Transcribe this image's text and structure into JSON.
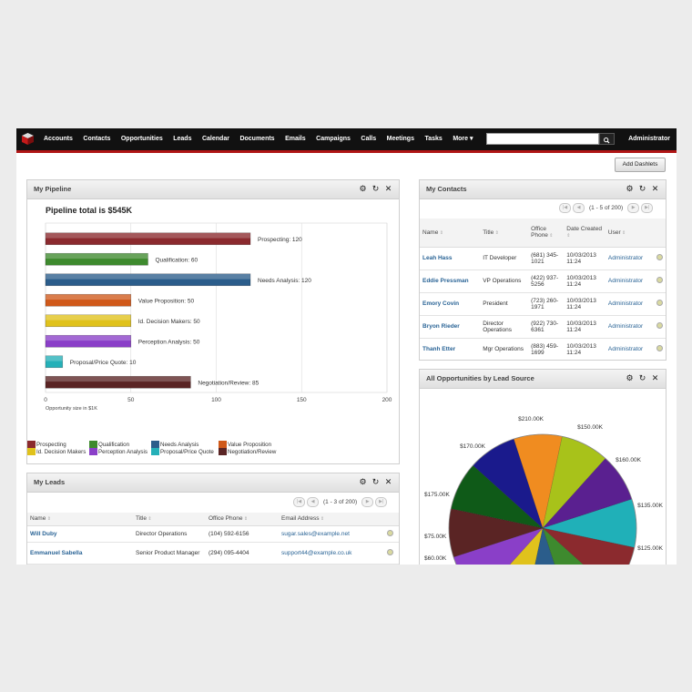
{
  "nav": {
    "items": [
      "Accounts",
      "Contacts",
      "Opportunities",
      "Leads",
      "Calendar",
      "Documents",
      "Emails",
      "Campaigns",
      "Calls",
      "Meetings",
      "Tasks",
      "More ▾"
    ],
    "search": {
      "value": "",
      "placeholder": ""
    },
    "user": "Administrator"
  },
  "add_dashlets": "Add Dashlets",
  "pipeline": {
    "title": "My Pipeline",
    "chart_title": "Pipeline total is $545K",
    "xlabel": "Opportunity size in $1K",
    "ticks": [
      "0",
      "50",
      "100",
      "150",
      "200"
    ],
    "legend": [
      "Prospecting",
      "Qualification",
      "Needs Analysis",
      "Value Proposition",
      "Id. Decision Makers",
      "Perception Analysis",
      "Proposal/Price Quote",
      "Negotiation/Review"
    ]
  },
  "chart_data": [
    {
      "type": "bar",
      "orientation": "horizontal",
      "title": "Pipeline total is $545K",
      "xlabel": "Opportunity size in $1K",
      "xlim": [
        0,
        200
      ],
      "categories": [
        "Prospecting",
        "Qualification",
        "Needs Analysis",
        "Value Proposition",
        "Id. Decision Makers",
        "Perception Analysis",
        "Proposal/Price Quote",
        "Negotiation/Review"
      ],
      "values": [
        120,
        60,
        120,
        50,
        50,
        50,
        10,
        85
      ],
      "labels": [
        "Prospecting: 120",
        "Qualification: 60",
        "Needs Analysis: 120",
        "Value Proposition: 50",
        "Id. Decision Makers: 50",
        "Perception Analysis: 50",
        "Proposal/Price Quote: 10",
        "Negotiation/Review: 85"
      ],
      "colors": [
        "#8b2a2e",
        "#3e8a2e",
        "#2b5d8b",
        "#d0591a",
        "#e0c21c",
        "#8a3fc8",
        "#25b0b8",
        "#5a2424"
      ],
      "grid": true,
      "legend": "bottom"
    },
    {
      "type": "pie",
      "title": "All Opportunities by Lead Source",
      "labels": [
        "$210.00K",
        "$150.00K",
        "$160.00K",
        "$135.00K",
        "$125.00K",
        "$60.00K",
        "$75.00K",
        "$175.00K",
        "$170.00K"
      ],
      "values": [
        210,
        150,
        160,
        135,
        125,
        60,
        75,
        175,
        170
      ]
    }
  ],
  "contacts": {
    "title": "My Contacts",
    "pager": "(1 - 5 of 200)",
    "columns": [
      "Name",
      "Title",
      "Office Phone",
      "Date Created",
      "User"
    ],
    "rows": [
      {
        "name": "Leah Hass",
        "title": "IT Developer",
        "phone": "(681) 345-1021",
        "date": "10/03/2013 11:24",
        "user": "Administrator"
      },
      {
        "name": "Eddie Pressman",
        "title": "VP Operations",
        "phone": "(422) 937-5256",
        "date": "10/03/2013 11:24",
        "user": "Administrator"
      },
      {
        "name": "Emory Covin",
        "title": "President",
        "phone": "(723) 260-1971",
        "date": "10/03/2013 11:24",
        "user": "Administrator"
      },
      {
        "name": "Bryon Rieder",
        "title": "Director Operations",
        "phone": "(922) 730-6361",
        "date": "10/03/2013 11:24",
        "user": "Administrator"
      },
      {
        "name": "Thanh Etter",
        "title": "Mgr Operations",
        "phone": "(883) 459-1699",
        "date": "10/03/2013 11:24",
        "user": "Administrator"
      }
    ]
  },
  "leads": {
    "title": "My Leads",
    "pager": "(1 - 3 of 200)",
    "columns": [
      "Name",
      "Title",
      "Office Phone",
      "Email Address"
    ],
    "rows": [
      {
        "name": "Will Duby",
        "title": "Director Operations",
        "phone": "(104) 592-6156",
        "email": "sugar.sales@example.net"
      },
      {
        "name": "Emmanuel Sabella",
        "title": "Senior Product Manager",
        "phone": "(294) 095-4404",
        "email": "support44@example.co.uk"
      }
    ]
  },
  "opportunities": {
    "title": "All Opportunities by Lead Source",
    "pie_colors": [
      "#f08c20",
      "#a8c21a",
      "#5a2090",
      "#20b0b8",
      "#8b2a2e",
      "#3e8a2e",
      "#2b5d8b",
      "#e0c21c",
      "#8a3fc8",
      "#5a2424",
      "#0f5a18",
      "#1a1a8c"
    ]
  }
}
